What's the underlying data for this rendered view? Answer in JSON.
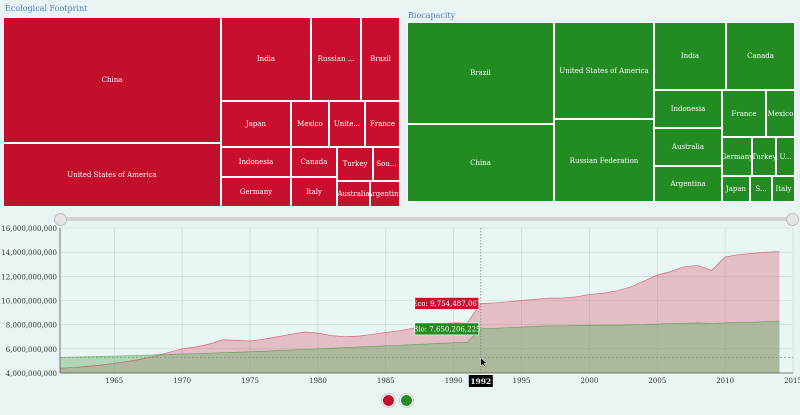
{
  "eco_panel": {
    "title": "Ecological Footprint",
    "color": "#c8102e",
    "cells": [
      {
        "label": "China"
      },
      {
        "label": "United States of America"
      },
      {
        "label": "India"
      },
      {
        "label": "Russian ..."
      },
      {
        "label": "Brazil"
      },
      {
        "label": "Japan"
      },
      {
        "label": "Mexico"
      },
      {
        "label": "Unite..."
      },
      {
        "label": "France"
      },
      {
        "label": "Indonesia"
      },
      {
        "label": "Canada"
      },
      {
        "label": "Turkey"
      },
      {
        "label": "Sou..."
      },
      {
        "label": "Germany"
      },
      {
        "label": "Italy"
      },
      {
        "label": "Australia"
      },
      {
        "label": "Argentina"
      }
    ]
  },
  "bio_panel": {
    "title": "Biocapacity",
    "color": "#228b22",
    "cells": [
      {
        "label": "Brazil"
      },
      {
        "label": "China"
      },
      {
        "label": "United States of America"
      },
      {
        "label": "Russian Federation"
      },
      {
        "label": "India"
      },
      {
        "label": "Canada"
      },
      {
        "label": "Indonesia"
      },
      {
        "label": "France"
      },
      {
        "label": "Mexico"
      },
      {
        "label": "Australia"
      },
      {
        "label": "Germany"
      },
      {
        "label": "Turkey"
      },
      {
        "label": "U..."
      },
      {
        "label": "Argentina"
      },
      {
        "label": "Japan"
      },
      {
        "label": "S..."
      },
      {
        "label": "Italy"
      }
    ]
  },
  "chart_data": {
    "type": "area",
    "xlim": [
      1961,
      2015
    ],
    "ylim": [
      4000000000,
      16000000000
    ],
    "x_ticks": [
      1965,
      1970,
      1975,
      1980,
      1985,
      1990,
      1995,
      2000,
      2005,
      2010,
      2015
    ],
    "y_ticks": [
      4000000000,
      6000000000,
      8000000000,
      10000000000,
      12000000000,
      14000000000,
      16000000000
    ],
    "y_tick_labels": [
      "4,000,000,000",
      "6,000,000,000",
      "8,000,000,000",
      "10,000,000,000",
      "12,000,000,000",
      "14,000,000,000",
      "16,000,000,000"
    ],
    "grid": true,
    "x": [
      1961,
      1962,
      1963,
      1964,
      1965,
      1966,
      1967,
      1968,
      1969,
      1970,
      1971,
      1972,
      1973,
      1974,
      1975,
      1976,
      1977,
      1978,
      1979,
      1980,
      1981,
      1982,
      1983,
      1984,
      1985,
      1986,
      1987,
      1988,
      1989,
      1990,
      1991,
      1992,
      1993,
      1994,
      1995,
      1996,
      1997,
      1998,
      1999,
      2000,
      2001,
      2002,
      2003,
      2004,
      2005,
      2006,
      2007,
      2008,
      2009,
      2010,
      2011,
      2012,
      2013,
      2014
    ],
    "series": [
      {
        "key": "eco",
        "color": "#c8102e",
        "fill": "rgba(214,72,94,0.32)",
        "values": [
          4400000000,
          4450000000,
          4550000000,
          4650000000,
          4800000000,
          4950000000,
          5150000000,
          5400000000,
          5700000000,
          6000000000,
          6150000000,
          6400000000,
          6750000000,
          6700000000,
          6650000000,
          6800000000,
          7000000000,
          7200000000,
          7400000000,
          7300000000,
          7100000000,
          7000000000,
          7050000000,
          7200000000,
          7350000000,
          7500000000,
          7700000000,
          7900000000,
          8000000000,
          8200000000,
          8150000000,
          9754487067,
          9800000000,
          9900000000,
          10000000000,
          10100000000,
          10200000000,
          10200000000,
          10300000000,
          10500000000,
          10600000000,
          10800000000,
          11100000000,
          11600000000,
          12100000000,
          12400000000,
          12800000000,
          12900000000,
          12500000000,
          13600000000,
          13800000000,
          13900000000,
          14000000000,
          14050000000
        ]
      },
      {
        "key": "bio",
        "color": "#228b22",
        "fill": "rgba(106,180,106,0.45)",
        "values": [
          5300000000,
          5320000000,
          5350000000,
          5380000000,
          5400000000,
          5430000000,
          5460000000,
          5500000000,
          5530000000,
          5570000000,
          5600000000,
          5640000000,
          5680000000,
          5720000000,
          5760000000,
          5800000000,
          5850000000,
          5900000000,
          5950000000,
          6000000000,
          6050000000,
          6100000000,
          6150000000,
          6200000000,
          6250000000,
          6300000000,
          6350000000,
          6400000000,
          6450000000,
          6500000000,
          6550000000,
          7650206225,
          7700000000,
          7750000000,
          7800000000,
          7850000000,
          7900000000,
          7900000000,
          7920000000,
          7950000000,
          7950000000,
          7960000000,
          7980000000,
          8000000000,
          8050000000,
          8100000000,
          8120000000,
          8150000000,
          8100000000,
          8150000000,
          8180000000,
          8200000000,
          8250000000,
          8300000000
        ]
      }
    ],
    "selected_year": 1992,
    "selected_year_label": "1992",
    "tooltip_eco": "Eco: 9,754,487,067",
    "tooltip_bio": "Bio: 7,650,206,225",
    "reference_line": 5300000000
  }
}
